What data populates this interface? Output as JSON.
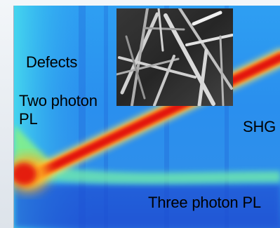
{
  "chart_data": {
    "type": "heatmap",
    "title": "",
    "xlabel": "",
    "ylabel": "",
    "annotations": [
      {
        "id": "defects",
        "text": "Defects"
      },
      {
        "id": "two-photon",
        "text": "Two photon\nPL"
      },
      {
        "id": "shg",
        "text": "SHG"
      },
      {
        "id": "three-photon",
        "text": "Three photon PL"
      }
    ],
    "colormap": [
      "#1f4fd8",
      "#2f8ff0",
      "#35c9f0",
      "#6ff0a8",
      "#d9f04a",
      "#ffb020",
      "#ff3b1a",
      "#d90f10"
    ],
    "inset": {
      "kind": "micrograph"
    }
  }
}
